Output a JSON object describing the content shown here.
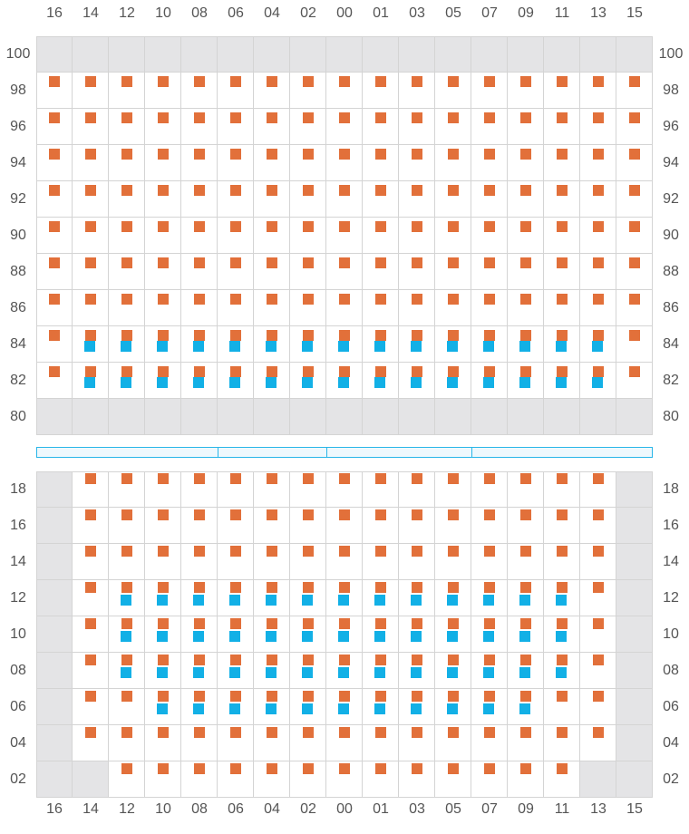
{
  "colors": {
    "orange": "#e2703a",
    "blue": "#12b0e6",
    "unavailable": "#e4e4e6",
    "grid": "#d4d4d4",
    "bar": "#29b6e8"
  },
  "columns": [
    "16",
    "14",
    "12",
    "10",
    "08",
    "06",
    "04",
    "02",
    "00",
    "01",
    "03",
    "05",
    "07",
    "09",
    "11",
    "13",
    "15"
  ],
  "upper": {
    "rows": [
      "100",
      "98",
      "96",
      "94",
      "92",
      "90",
      "88",
      "86",
      "84",
      "82",
      "80"
    ],
    "unavailable_rows": [
      "100",
      "80"
    ],
    "orange_rows": [
      "98",
      "96",
      "94",
      "92",
      "90",
      "88",
      "86",
      "84",
      "82"
    ],
    "blue_rows": [
      "84",
      "82"
    ],
    "blue_columns": [
      "14",
      "12",
      "10",
      "08",
      "06",
      "04",
      "02",
      "00",
      "01",
      "03",
      "05",
      "07",
      "09",
      "11",
      "13"
    ]
  },
  "lower": {
    "rows": [
      "18",
      "16",
      "14",
      "12",
      "10",
      "08",
      "06",
      "04",
      "02"
    ],
    "unavailable_cells": [
      "18-16",
      "16-16",
      "14-16",
      "12-16",
      "10-16",
      "08-16",
      "06-16",
      "04-16",
      "02-16",
      "02-14",
      "18-15",
      "16-15",
      "14-15",
      "12-15",
      "10-15",
      "08-15",
      "06-15",
      "04-15",
      "02-15",
      "02-13"
    ],
    "no_orange_cells": [],
    "blue_cells": {
      "12": [
        "12",
        "10",
        "08",
        "06",
        "04",
        "02",
        "00",
        "01",
        "03",
        "05",
        "07",
        "09",
        "11"
      ],
      "10": [
        "12",
        "10",
        "08",
        "06",
        "04",
        "02",
        "00",
        "01",
        "03",
        "05",
        "07",
        "09",
        "11"
      ],
      "08": [
        "12",
        "10",
        "08",
        "06",
        "04",
        "02",
        "00",
        "01",
        "03",
        "05",
        "07",
        "09",
        "11"
      ],
      "06": [
        "10",
        "08",
        "06",
        "04",
        "02",
        "00",
        "01",
        "03",
        "05",
        "07",
        "09"
      ]
    }
  },
  "section_bar": {
    "segments": 4
  }
}
